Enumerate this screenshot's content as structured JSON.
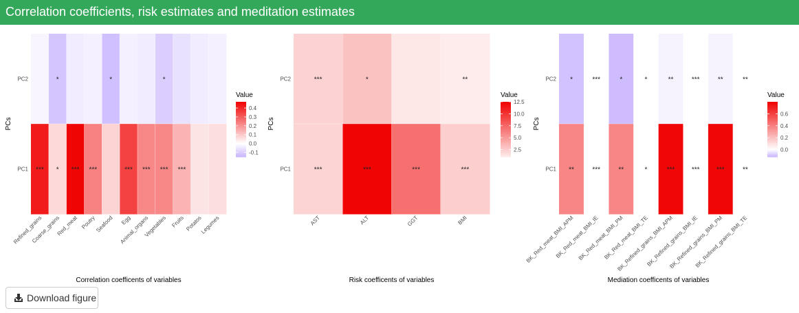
{
  "header": {
    "title": "Correlation coefficients, risk estimates and meditation estimates"
  },
  "download_button": {
    "label": "Download figure",
    "icon": "download-icon"
  },
  "colors": {
    "header_bg": "#34a85a",
    "low": "#c9b6ff",
    "mid": "#ffffff",
    "high": "#f00000"
  },
  "chart_data": [
    {
      "type": "heatmap",
      "caption": "Correlation coefficents of variables",
      "ylabel": "PCs",
      "rows": [
        "PC2",
        "PC1"
      ],
      "columns": [
        "Refined_grains",
        "Coarse_grains",
        "Red_meat",
        "Poutry",
        "Seafood",
        "Egg",
        "Animal_organs",
        "Vegetables",
        "Fruits",
        "Potatos",
        "Legumes"
      ],
      "values": [
        [
          -0.02,
          -0.12,
          -0.04,
          -0.03,
          -0.13,
          -0.03,
          -0.04,
          -0.1,
          -0.06,
          -0.04,
          -0.03
        ],
        [
          0.42,
          0.07,
          0.46,
          0.23,
          0.08,
          0.35,
          0.22,
          0.22,
          0.14,
          0.05,
          0.06
        ]
      ],
      "significance": [
        [
          "",
          "*",
          "",
          "",
          "*",
          "",
          "",
          "*",
          "",
          "",
          ""
        ],
        [
          "***",
          "*",
          "***",
          "***",
          "",
          "***",
          "***",
          "***",
          "***",
          "",
          ""
        ]
      ],
      "legend": {
        "title": "Value",
        "min": -0.15,
        "max": 0.47,
        "ticks": [
          0.4,
          0.3,
          0.2,
          0.1,
          0.0,
          -0.1
        ],
        "tick_labels": [
          "0.4",
          "0.3",
          "0.2",
          "0.1",
          "0.0",
          "-0.1"
        ]
      }
    },
    {
      "type": "heatmap",
      "caption": "Risk coefficents of variables",
      "ylabel": "PCs",
      "rows": [
        "PC2",
        "PC1"
      ],
      "columns": [
        "AST",
        "ALT",
        "GGT",
        "BMI"
      ],
      "values": [
        [
          2.2,
          3.0,
          1.2,
          1.0
        ],
        [
          2.1,
          12.3,
          7.0,
          2.4
        ]
      ],
      "significance": [
        [
          "***",
          "*",
          "",
          "**"
        ],
        [
          "***",
          "***",
          "***",
          "***"
        ]
      ],
      "legend": {
        "title": "Value",
        "min": 1.0,
        "max": 12.5,
        "ticks": [
          12.5,
          10.0,
          7.5,
          5.0,
          2.5
        ],
        "tick_labels": [
          "12.5",
          "10.0",
          "7.5",
          "5.0",
          "2.5"
        ]
      }
    },
    {
      "type": "heatmap",
      "caption": "Mediation coefficents of variables",
      "ylabel": "PCs",
      "rows": [
        "PC2",
        "PC1"
      ],
      "columns": [
        "BK_Red_meat_BMI_APM",
        "BK_Red_meat_BMI_IE",
        "BK_Red_meat_BMI_PM",
        "BK_Red_meat_BMI_TE",
        "BK_Refined_grains_BMI_APM",
        "BK_Refined_grains_BMI_IE",
        "BK_Refined_grains_BMI_PM",
        "BK_Refined_grains_BMI_TE"
      ],
      "values": [
        [
          -0.1,
          0.0,
          -0.11,
          0.0,
          -0.02,
          0.0,
          -0.02,
          0.0
        ],
        [
          0.38,
          0.0,
          0.38,
          0.0,
          0.78,
          0.0,
          0.78,
          0.0
        ]
      ],
      "significance": [
        [
          "*",
          "***",
          "*",
          "*",
          "**",
          "***",
          "**",
          "**"
        ],
        [
          "**",
          "***",
          "**",
          "*",
          "***",
          "***",
          "***",
          "**"
        ]
      ],
      "legend": {
        "title": "Value",
        "min": -0.12,
        "max": 0.8,
        "ticks": [
          0.6,
          0.4,
          0.2,
          0.0
        ],
        "tick_labels": [
          "0.6",
          "0.4",
          "0.2",
          "0.0"
        ]
      }
    }
  ]
}
